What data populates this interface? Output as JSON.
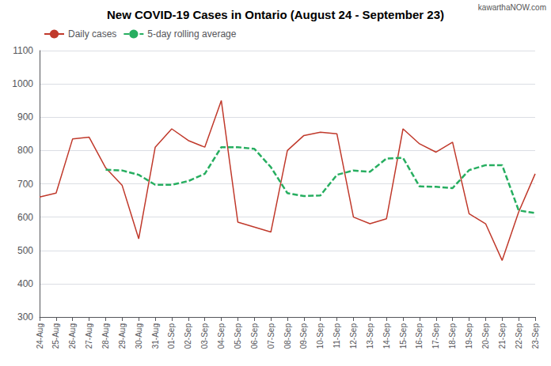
{
  "chart_data": {
    "type": "line",
    "title": "New COVID-19 Cases in Ontario (August 24 - September 23)",
    "annotations": [
      "kawarthaNOW.com"
    ],
    "categories": [
      "24-Aug",
      "25-Aug",
      "26-Aug",
      "27-Aug",
      "28-Aug",
      "29-Aug",
      "30-Aug",
      "31-Aug",
      "01-Sep",
      "02-Sep",
      "03-Sep",
      "04-Sep",
      "05-Sep",
      "06-Sep",
      "07-Sep",
      "08-Sep",
      "09-Sep",
      "10-Sep",
      "11-Sep",
      "12-Sep",
      "13-Sep",
      "14-Sep",
      "15-Sep",
      "16-Sep",
      "17-Sep",
      "18-Sep",
      "19-Sep",
      "20-Sep",
      "21-Sep",
      "22-Sep",
      "23-Sep"
    ],
    "series": [
      {
        "name": "Daily cases",
        "color": "#c0392b",
        "line_style": "solid",
        "values": [
          660,
          672,
          835,
          840,
          748,
          695,
          535,
          810,
          865,
          830,
          810,
          950,
          585,
          570,
          555,
          800,
          845,
          855,
          850,
          600,
          580,
          595,
          865,
          820,
          795,
          825,
          610,
          580,
          470,
          615,
          730
        ]
      },
      {
        "name": "5-day rolling average",
        "color": "#27ae60",
        "line_style": "dashed",
        "values": [
          null,
          null,
          null,
          null,
          742,
          740,
          727,
          697,
          697,
          708,
          730,
          810,
          810,
          805,
          750,
          672,
          663,
          665,
          727,
          740,
          736,
          776,
          778,
          692,
          691,
          687,
          741,
          756,
          756,
          620,
          612
        ]
      }
    ],
    "ylim": [
      300,
      1100
    ],
    "yticks": [
      300,
      400,
      500,
      600,
      700,
      800,
      900,
      1000,
      1100
    ],
    "grid": true,
    "legend": "upper left"
  }
}
